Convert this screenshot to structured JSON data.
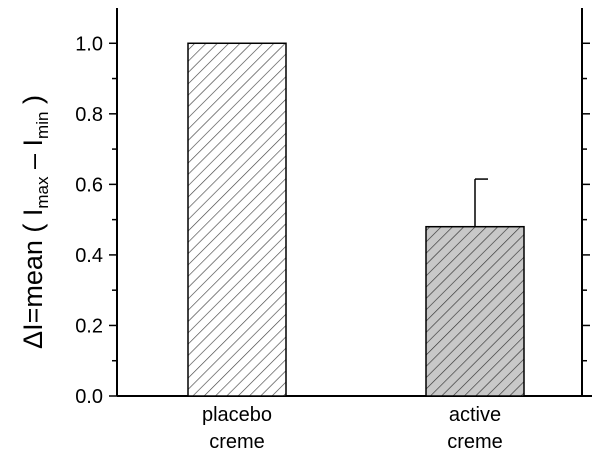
{
  "chart_data": {
    "type": "bar",
    "categories": [
      [
        "placebo",
        "creme"
      ],
      [
        "active",
        "creme"
      ]
    ],
    "values": [
      1.0,
      0.48
    ],
    "error_plus": [
      0,
      0.135
    ],
    "ylim": [
      0.0,
      1.1
    ],
    "yticks": [
      "0.0",
      "0.2",
      "0.4",
      "0.6",
      "0.8",
      "1.0"
    ],
    "ylabel": {
      "prefix": "ΔI=mean ( I",
      "sub1": "max",
      "mid": " – I",
      "sub2": "min",
      "suffix": " )"
    },
    "bar_colors": [
      "#ffffff",
      "#c8c8c8"
    ],
    "hatch": "diagonal",
    "grid": false,
    "legend": "none"
  }
}
